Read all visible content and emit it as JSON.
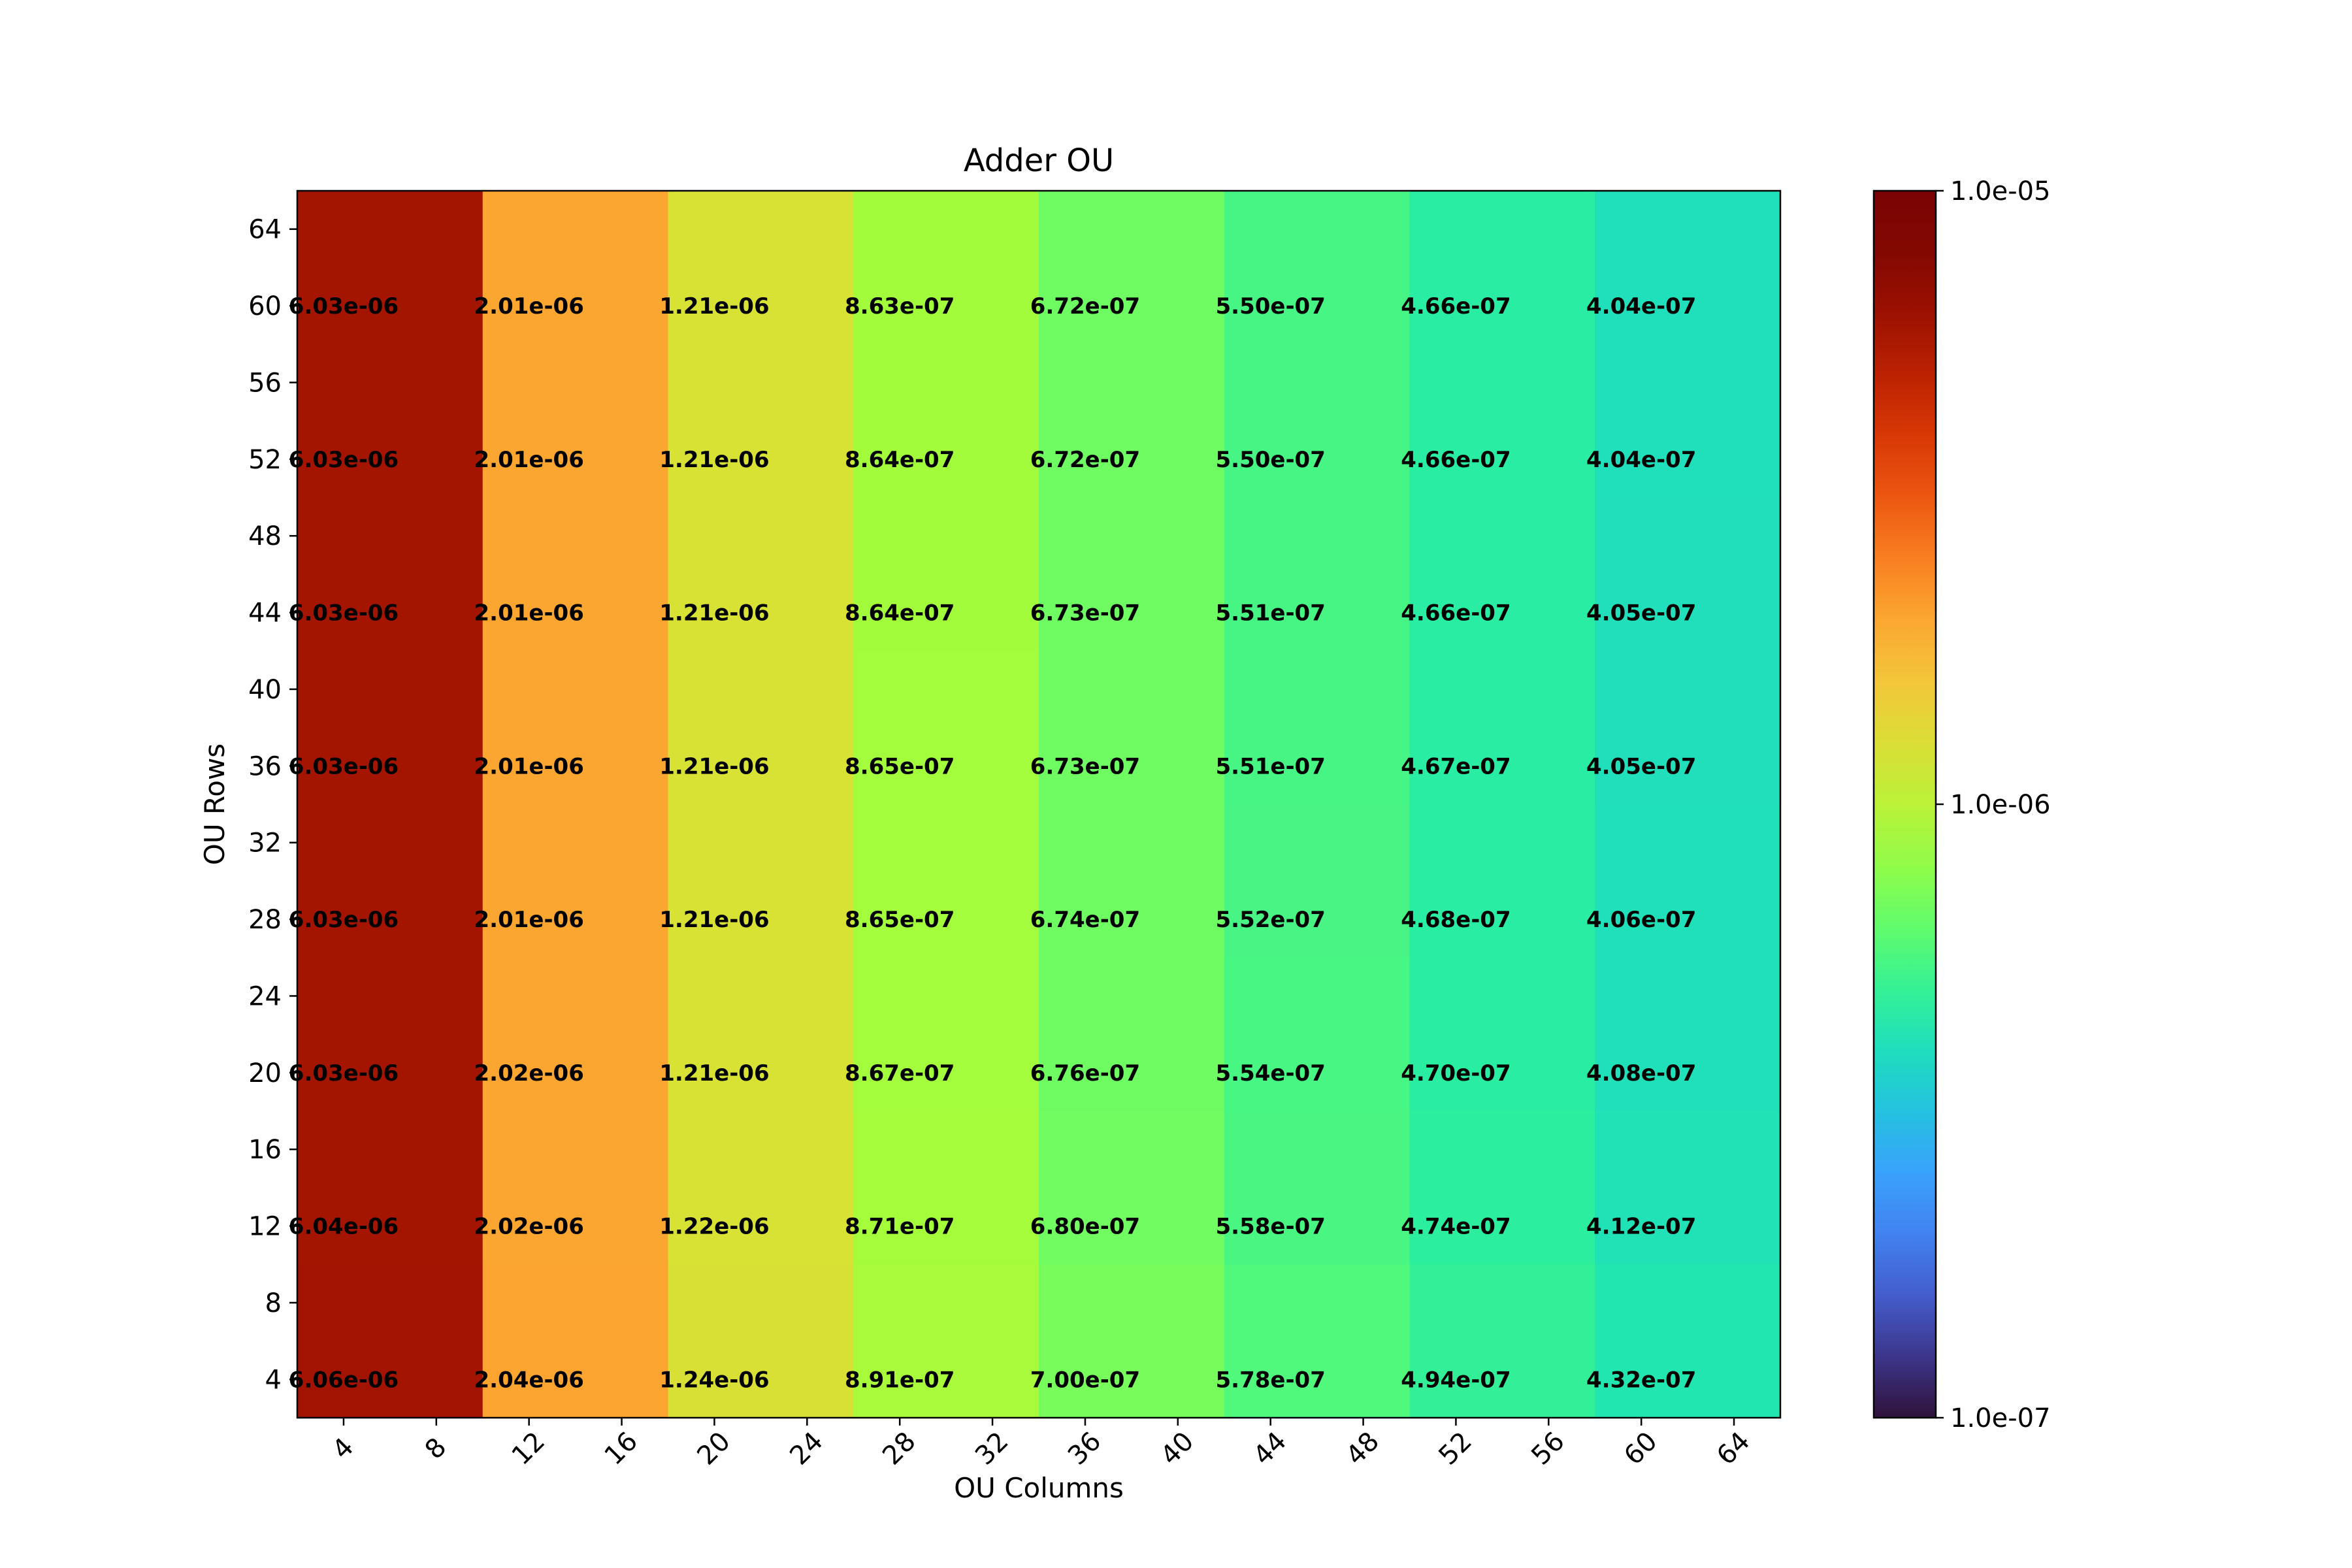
{
  "chart_data": {
    "type": "heatmap",
    "title": "Adder OU",
    "xlabel": "OU Columns",
    "ylabel": "OU Rows",
    "x_ticks": [
      4,
      8,
      12,
      16,
      20,
      24,
      28,
      32,
      36,
      40,
      44,
      48,
      52,
      56,
      60,
      64
    ],
    "y_ticks": [
      4,
      8,
      12,
      16,
      20,
      24,
      28,
      32,
      36,
      40,
      44,
      48,
      52,
      56,
      60,
      64
    ],
    "colorscale": "turbo",
    "log_scale": true,
    "colorbar_range": [
      1e-07,
      1e-05
    ],
    "colorbar_ticks": [
      {
        "value": 1e-05,
        "label": "1.0e-05"
      },
      {
        "value": 1e-06,
        "label": "1.0e-06"
      },
      {
        "value": 1e-07,
        "label": "1.0e-07"
      }
    ],
    "grid": false,
    "annotated_rows": [
      60,
      52,
      44,
      36,
      28,
      20,
      12,
      4
    ],
    "annotated_cols": [
      4,
      12,
      20,
      28,
      36,
      44,
      52,
      60
    ],
    "annotations": [
      [
        "6.03e-06",
        "2.01e-06",
        "1.21e-06",
        "8.63e-07",
        "6.72e-07",
        "5.50e-07",
        "4.66e-07",
        "4.04e-07"
      ],
      [
        "6.03e-06",
        "2.01e-06",
        "1.21e-06",
        "8.64e-07",
        "6.72e-07",
        "5.50e-07",
        "4.66e-07",
        "4.04e-07"
      ],
      [
        "6.03e-06",
        "2.01e-06",
        "1.21e-06",
        "8.64e-07",
        "6.73e-07",
        "5.51e-07",
        "4.66e-07",
        "4.05e-07"
      ],
      [
        "6.03e-06",
        "2.01e-06",
        "1.21e-06",
        "8.65e-07",
        "6.73e-07",
        "5.51e-07",
        "4.67e-07",
        "4.05e-07"
      ],
      [
        "6.03e-06",
        "2.01e-06",
        "1.21e-06",
        "8.65e-07",
        "6.74e-07",
        "5.52e-07",
        "4.68e-07",
        "4.06e-07"
      ],
      [
        "6.03e-06",
        "2.02e-06",
        "1.21e-06",
        "8.67e-07",
        "6.76e-07",
        "5.54e-07",
        "4.70e-07",
        "4.08e-07"
      ],
      [
        "6.04e-06",
        "2.02e-06",
        "1.22e-06",
        "8.71e-07",
        "6.80e-07",
        "5.58e-07",
        "4.74e-07",
        "4.12e-07"
      ],
      [
        "6.06e-06",
        "2.04e-06",
        "1.24e-06",
        "8.91e-07",
        "7.00e-07",
        "5.78e-07",
        "4.94e-07",
        "4.32e-07"
      ]
    ]
  }
}
